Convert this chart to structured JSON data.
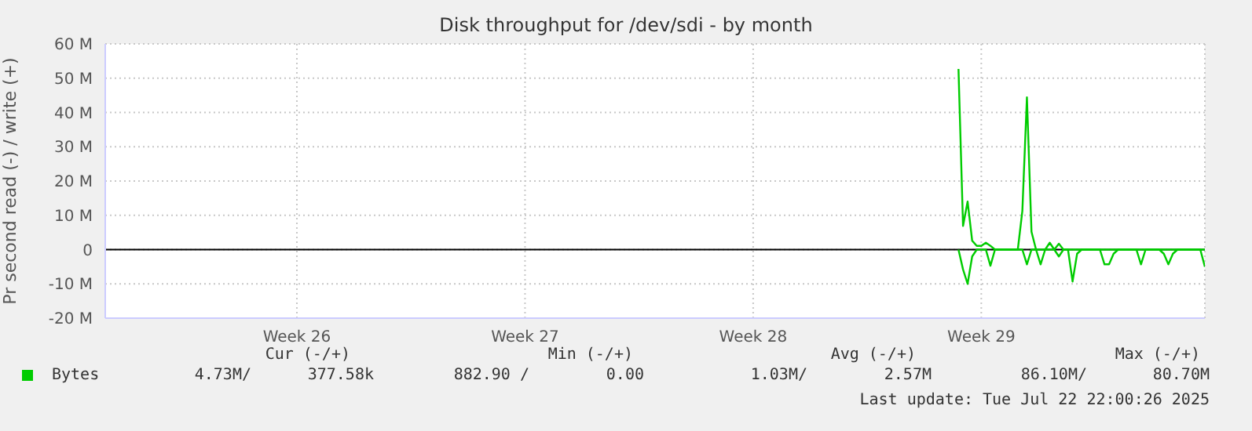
{
  "chart_data": {
    "type": "line",
    "title": "Disk throughput for /dev/sdi - by month",
    "ylabel": "Pr second read (-) / write (+)",
    "categories": [
      null,
      null,
      null,
      null,
      null,
      null,
      null,
      null,
      null,
      null,
      null,
      null,
      null,
      null,
      null,
      null,
      null,
      null,
      null,
      null,
      null,
      null,
      null,
      null,
      null,
      null,
      null,
      null,
      null,
      null,
      null,
      null,
      null,
      null,
      null,
      null,
      null,
      null,
      null,
      null,
      null,
      null,
      "Week 26",
      null,
      null,
      null,
      null,
      null,
      null,
      null,
      null,
      null,
      null,
      null,
      null,
      null,
      null,
      null,
      null,
      null,
      null,
      null,
      null,
      null,
      null,
      null,
      null,
      null,
      null,
      null,
      null,
      null,
      null,
      null,
      null,
      null,
      null,
      null,
      null,
      null,
      null,
      null,
      null,
      null,
      null,
      null,
      null,
      null,
      null,
      null,
      null,
      null,
      "Week 27",
      null,
      null,
      null,
      null,
      null,
      null,
      null,
      null,
      null,
      null,
      null,
      null,
      null,
      null,
      null,
      null,
      null,
      null,
      null,
      null,
      null,
      null,
      null,
      null,
      null,
      null,
      null,
      null,
      null,
      null,
      null,
      null,
      null,
      null,
      null,
      null,
      null,
      null,
      null,
      null,
      null,
      null,
      null,
      null,
      null,
      null,
      null,
      null,
      null,
      "Week 28",
      null,
      null,
      null,
      null,
      null,
      null,
      null,
      null,
      null,
      null,
      null,
      null,
      null,
      null,
      null,
      null,
      null,
      null,
      null,
      null,
      null,
      null,
      null,
      null,
      null,
      null,
      null,
      null,
      null,
      null,
      null,
      null,
      null,
      null,
      null,
      null,
      null,
      null,
      null,
      null,
      null,
      null,
      null,
      null,
      null,
      null,
      null,
      null,
      null,
      "Week 29",
      null,
      null,
      null,
      null,
      null,
      null,
      null,
      null,
      null,
      null,
      null,
      null,
      null,
      null,
      null,
      null,
      null,
      null,
      null,
      null,
      null,
      null,
      null,
      null,
      null,
      null,
      null,
      null,
      null,
      null,
      null,
      null,
      null,
      null,
      null,
      null,
      null,
      null,
      null,
      null,
      null,
      null,
      null,
      null,
      null,
      null,
      null,
      null,
      null
    ],
    "ylim": [
      -20,
      60
    ],
    "yticks": [
      {
        "value": -20,
        "label": "-20 M"
      },
      {
        "value": -10,
        "label": "-10 M"
      },
      {
        "value": 0,
        "label": "0"
      },
      {
        "value": 10,
        "label": "10 M"
      },
      {
        "value": 20,
        "label": "20 M"
      },
      {
        "value": 30,
        "label": "30 M"
      },
      {
        "value": 40,
        "label": "40 M"
      },
      {
        "value": 50,
        "label": "50 M"
      },
      {
        "value": 60,
        "label": "60 M"
      }
    ],
    "grid": true,
    "legend": "bottom left",
    "marker": "none",
    "line_style": "solid",
    "ref_lines": [
      {
        "axis": "y",
        "value": 0,
        "color": "#000000"
      }
    ],
    "series": [
      {
        "name": "Bytes",
        "color": "#00cc00",
        "values": [
          null,
          null,
          null,
          null,
          null,
          null,
          null,
          null,
          null,
          null,
          null,
          null,
          null,
          null,
          null,
          null,
          null,
          null,
          null,
          null,
          null,
          null,
          null,
          null,
          null,
          null,
          null,
          null,
          null,
          null,
          null,
          null,
          null,
          null,
          null,
          null,
          null,
          null,
          null,
          null,
          null,
          null,
          null,
          null,
          null,
          null,
          null,
          null,
          null,
          null,
          null,
          null,
          null,
          null,
          null,
          null,
          null,
          null,
          null,
          null,
          null,
          null,
          null,
          null,
          null,
          null,
          null,
          null,
          null,
          null,
          null,
          null,
          null,
          null,
          null,
          null,
          null,
          null,
          null,
          null,
          null,
          null,
          null,
          null,
          null,
          null,
          null,
          null,
          null,
          null,
          null,
          null,
          null,
          null,
          null,
          null,
          null,
          null,
          null,
          null,
          null,
          null,
          null,
          null,
          null,
          null,
          null,
          null,
          null,
          null,
          null,
          null,
          null,
          null,
          null,
          null,
          null,
          null,
          null,
          null,
          null,
          null,
          null,
          null,
          null,
          null,
          null,
          null,
          null,
          null,
          null,
          null,
          null,
          null,
          null,
          null,
          null,
          null,
          null,
          null,
          null,
          null,
          null,
          null,
          null,
          null,
          null,
          null,
          null,
          null,
          null,
          null,
          null,
          null,
          null,
          null,
          null,
          null,
          null,
          null,
          null,
          null,
          null,
          null,
          null,
          null,
          null,
          null,
          null,
          null,
          null,
          null,
          null,
          null,
          null,
          null,
          null,
          null,
          null,
          null,
          null,
          null,
          null,
          null,
          null,
          null,
          null,
          52.7,
          6.9,
          14,
          2.6,
          1.1,
          1.1,
          2,
          1.1,
          0,
          0,
          0,
          0,
          0,
          0,
          11.3,
          44.4,
          5.2,
          0,
          0,
          0,
          2,
          0,
          1.7,
          0,
          0,
          0,
          0,
          0,
          0,
          0,
          0,
          0,
          0,
          0,
          0,
          0,
          0,
          0,
          0,
          0,
          0,
          0,
          0,
          0,
          0,
          0,
          0,
          0,
          0,
          0,
          0,
          0,
          0,
          0,
          0
        ]
      },
      {
        "color": "#00cc00",
        "values": [
          null,
          null,
          null,
          null,
          null,
          null,
          null,
          null,
          null,
          null,
          null,
          null,
          null,
          null,
          null,
          null,
          null,
          null,
          null,
          null,
          null,
          null,
          null,
          null,
          null,
          null,
          null,
          null,
          null,
          null,
          null,
          null,
          null,
          null,
          null,
          null,
          null,
          null,
          null,
          null,
          null,
          null,
          null,
          null,
          null,
          null,
          null,
          null,
          null,
          null,
          null,
          null,
          null,
          null,
          null,
          null,
          null,
          null,
          null,
          null,
          null,
          null,
          null,
          null,
          null,
          null,
          null,
          null,
          null,
          null,
          null,
          null,
          null,
          null,
          null,
          null,
          null,
          null,
          null,
          null,
          null,
          null,
          null,
          null,
          null,
          null,
          null,
          null,
          null,
          null,
          null,
          null,
          null,
          null,
          null,
          null,
          null,
          null,
          null,
          null,
          null,
          null,
          null,
          null,
          null,
          null,
          null,
          null,
          null,
          null,
          null,
          null,
          null,
          null,
          null,
          null,
          null,
          null,
          null,
          null,
          null,
          null,
          null,
          null,
          null,
          null,
          null,
          null,
          null,
          null,
          null,
          null,
          null,
          null,
          null,
          null,
          null,
          null,
          null,
          null,
          null,
          null,
          null,
          null,
          null,
          null,
          null,
          null,
          null,
          null,
          null,
          null,
          null,
          null,
          null,
          null,
          null,
          null,
          null,
          null,
          null,
          null,
          null,
          null,
          null,
          null,
          null,
          null,
          null,
          null,
          null,
          null,
          null,
          null,
          null,
          null,
          null,
          null,
          null,
          null,
          null,
          null,
          null,
          null,
          null,
          null,
          null,
          0,
          -5.8,
          -10,
          -2,
          0,
          0,
          0,
          -4.7,
          0,
          0,
          0,
          0,
          0,
          0,
          0,
          -4.3,
          0,
          0,
          -4.3,
          0,
          0,
          0,
          -2,
          0,
          0,
          -9.3,
          -1.2,
          0,
          0,
          0,
          0,
          0,
          -4.3,
          -4.3,
          -1.2,
          0,
          0,
          0,
          0,
          0,
          -4.3,
          0,
          0,
          0,
          0,
          -1.2,
          -4.3,
          -1.2,
          0,
          0,
          0,
          0,
          0,
          0,
          -5
        ]
      }
    ],
    "annotations": [
      "Cur (-/+)",
      "Min (-/+)",
      "Avg (-/+)",
      "Max (-/+)",
      "4.73M/",
      "377.58k",
      "882.90 /",
      "0.00",
      "1.03M/",
      "2.57M",
      "86.10M/",
      "80.70M",
      "Last update: Tue Jul 22 22:00:26 2025"
    ]
  }
}
